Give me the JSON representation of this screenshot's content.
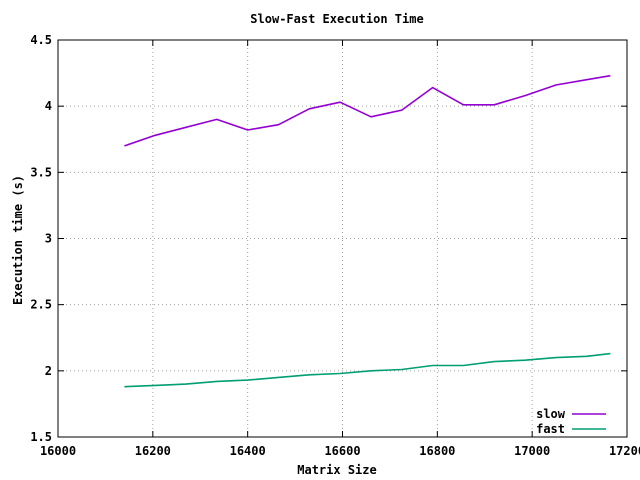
{
  "chart_data": {
    "type": "line",
    "title": "Slow-Fast Execution Time",
    "xlabel": "Matrix Size",
    "ylabel": "Execution time (s)",
    "xlim": [
      16000,
      17200
    ],
    "ylim": [
      1.5,
      4.5
    ],
    "x_ticks": [
      "16000",
      "16200",
      "16400",
      "16600",
      "16800",
      "17000",
      "17200"
    ],
    "y_ticks": [
      "1.5",
      "2",
      "2.5",
      "3",
      "3.5",
      "4",
      "4.5"
    ],
    "grid": true,
    "legend_position": "bottom-right",
    "x": [
      16140,
      16205,
      16270,
      16335,
      16400,
      16465,
      16530,
      16595,
      16660,
      16725,
      16790,
      16855,
      16920,
      16985,
      17050,
      17115,
      17165
    ],
    "series": [
      {
        "name": "slow",
        "color": "#9400d3",
        "values": [
          3.7,
          3.78,
          3.84,
          3.9,
          3.82,
          3.86,
          3.98,
          4.03,
          3.92,
          3.97,
          4.14,
          4.01,
          4.01,
          4.08,
          4.16,
          4.2,
          4.23
        ]
      },
      {
        "name": "fast",
        "color": "#009e73",
        "values": [
          1.88,
          1.89,
          1.9,
          1.92,
          1.93,
          1.95,
          1.97,
          1.98,
          2.0,
          2.01,
          2.04,
          2.04,
          2.07,
          2.08,
          2.1,
          2.11,
          2.13
        ]
      }
    ]
  }
}
